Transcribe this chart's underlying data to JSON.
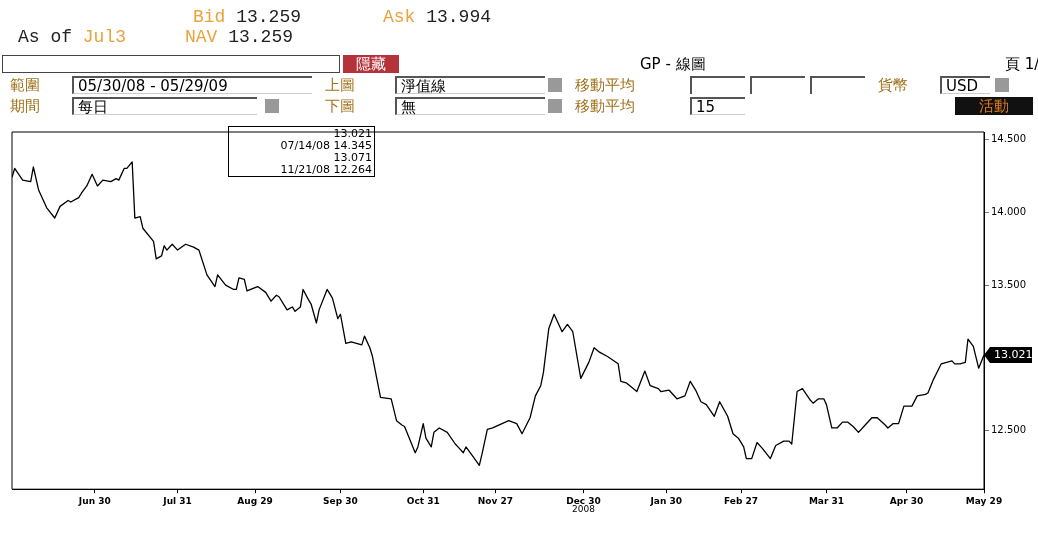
{
  "chart_data": {
    "type": "line",
    "color": "#000000",
    "marker": "none",
    "legend": false,
    "grid": false,
    "xlim": [
      "2008-05-30",
      "2009-05-29"
    ],
    "ylim": [
      12.1,
      14.55
    ],
    "xticks": [
      {
        "value": "2008-06-30",
        "label": "Jun 30"
      },
      {
        "value": "2008-07-31",
        "label": "Jul 31"
      },
      {
        "value": "2008-08-29",
        "label": "Aug 29"
      },
      {
        "value": "2008-09-30",
        "label": "Sep 30"
      },
      {
        "value": "2008-10-31",
        "label": "Oct 31"
      },
      {
        "value": "2008-11-27",
        "label": "Nov 27"
      },
      {
        "value": "2008-12-30",
        "label": "Dec 30"
      },
      {
        "value": "2009-01-30",
        "label": "Jan 30"
      },
      {
        "value": "2009-02-27",
        "label": "Feb 27"
      },
      {
        "value": "2009-03-31",
        "label": "Mar 31"
      },
      {
        "value": "2009-04-30",
        "label": "Apr 30"
      },
      {
        "value": "2009-05-29",
        "label": "May 29"
      }
    ],
    "yticks": [
      {
        "value": 12.5,
        "label": "12.500"
      },
      {
        "value": 13.5,
        "label": "13.500"
      },
      {
        "value": 14,
        "label": "14.000"
      },
      {
        "value": 14.5,
        "label": "14.500"
      }
    ],
    "x": [
      "2008-05-30",
      "2008-05-31",
      "2008-06-03",
      "2008-06-06",
      "2008-06-07",
      "2008-06-09",
      "2008-06-12",
      "2008-06-15",
      "2008-06-17",
      "2008-06-20",
      "2008-06-21",
      "2008-06-24",
      "2008-06-25",
      "2008-06-27",
      "2008-06-29",
      "2008-07-01",
      "2008-07-03",
      "2008-07-06",
      "2008-07-08",
      "2008-07-09",
      "2008-07-11",
      "2008-07-12",
      "2008-07-14",
      "2008-07-15",
      "2008-07-17",
      "2008-07-18",
      "2008-07-22",
      "2008-07-23",
      "2008-07-25",
      "2008-07-26",
      "2008-07-27",
      "2008-07-29",
      "2008-07-31",
      "2008-08-03",
      "2008-08-06",
      "2008-08-08",
      "2008-08-11",
      "2008-08-14",
      "2008-08-15",
      "2008-08-18",
      "2008-08-21",
      "2008-08-22",
      "2008-08-23",
      "2008-08-25",
      "2008-08-26",
      "2008-08-30",
      "2008-09-02",
      "2008-09-04",
      "2008-09-06",
      "2008-09-07",
      "2008-09-10",
      "2008-09-12",
      "2008-09-13",
      "2008-09-15",
      "2008-09-16",
      "2008-09-18",
      "2008-09-19",
      "2008-09-21",
      "2008-09-22",
      "2008-09-25",
      "2008-09-27",
      "2008-09-29",
      "2008-09-30",
      "2008-10-02",
      "2008-10-04",
      "2008-10-08",
      "2008-10-09",
      "2008-10-11",
      "2008-10-12",
      "2008-10-15",
      "2008-10-19",
      "2008-10-21",
      "2008-10-23",
      "2008-10-24",
      "2008-10-28",
      "2008-10-29",
      "2008-10-31",
      "2008-11-01",
      "2008-11-03",
      "2008-11-04",
      "2008-11-06",
      "2008-11-09",
      "2008-11-12",
      "2008-11-13",
      "2008-11-15",
      "2008-11-16",
      "2008-11-18",
      "2008-11-21",
      "2008-11-22",
      "2008-11-24",
      "2008-11-26",
      "2008-12-02",
      "2008-12-05",
      "2008-12-07",
      "2008-12-10",
      "2008-12-12",
      "2008-12-14",
      "2008-12-15",
      "2008-12-17",
      "2008-12-19",
      "2008-12-22",
      "2008-12-24",
      "2008-12-26",
      "2008-12-29",
      "2009-01-01",
      "2009-01-03",
      "2009-01-05",
      "2009-01-08",
      "2009-01-12",
      "2009-01-13",
      "2009-01-15",
      "2009-01-19",
      "2009-01-22",
      "2009-01-24",
      "2009-01-27",
      "2009-01-28",
      "2009-01-31",
      "2009-02-03",
      "2009-02-06",
      "2009-02-08",
      "2009-02-10",
      "2009-02-12",
      "2009-02-14",
      "2009-02-17",
      "2009-02-19",
      "2009-02-22",
      "2009-02-24",
      "2009-02-26",
      "2009-02-28",
      "2009-03-01",
      "2009-03-03",
      "2009-03-05",
      "2009-03-07",
      "2009-03-10",
      "2009-03-12",
      "2009-03-15",
      "2009-03-17",
      "2009-03-18",
      "2009-03-20",
      "2009-03-22",
      "2009-03-25",
      "2009-03-26",
      "2009-03-28",
      "2009-03-30",
      "2009-03-31",
      "2009-04-02",
      "2009-04-04",
      "2009-04-06",
      "2009-04-08",
      "2009-04-10",
      "2009-04-12",
      "2009-04-14",
      "2009-04-17",
      "2009-04-19",
      "2009-04-22",
      "2009-04-23",
      "2009-04-25",
      "2009-04-27",
      "2009-04-29",
      "2009-05-02",
      "2009-05-04",
      "2009-05-07",
      "2009-05-08",
      "2009-05-10",
      "2009-05-13",
      "2009-05-17",
      "2009-05-18",
      "2009-05-20",
      "2009-05-22",
      "2009-05-23",
      "2009-05-25",
      "2009-05-27",
      "2009-05-29"
    ],
    "values": [
      14.24,
      14.3,
      14.22,
      14.21,
      14.31,
      14.15,
      14.03,
      13.96,
      14.04,
      14.08,
      14.07,
      14.1,
      14.13,
      14.18,
      14.26,
      14.18,
      14.22,
      14.21,
      14.23,
      14.22,
      14.3,
      14.3,
      14.345,
      13.96,
      13.97,
      13.89,
      13.8,
      13.68,
      13.7,
      13.77,
      13.74,
      13.78,
      13.74,
      13.78,
      13.76,
      13.74,
      13.57,
      13.49,
      13.57,
      13.5,
      13.47,
      13.47,
      13.55,
      13.54,
      13.46,
      13.49,
      13.45,
      13.39,
      13.43,
      13.42,
      13.33,
      13.35,
      13.32,
      13.35,
      13.47,
      13.4,
      13.37,
      13.24,
      13.33,
      13.47,
      13.41,
      13.27,
      13.3,
      13.1,
      13.11,
      13.09,
      13.15,
      13.07,
      13.01,
      12.73,
      12.72,
      12.57,
      12.54,
      12.53,
      12.35,
      12.39,
      12.55,
      12.45,
      12.39,
      12.49,
      12.52,
      12.49,
      12.41,
      12.39,
      12.35,
      12.39,
      12.34,
      12.264,
      12.34,
      12.51,
      12.52,
      12.57,
      12.55,
      12.48,
      12.59,
      12.74,
      12.81,
      12.9,
      13.2,
      13.3,
      13.18,
      13.23,
      13.18,
      12.86,
      12.97,
      13.07,
      13.04,
      13.01,
      12.96,
      12.84,
      12.83,
      12.77,
      12.91,
      12.81,
      12.79,
      12.77,
      12.78,
      12.72,
      12.74,
      12.84,
      12.78,
      12.7,
      12.68,
      12.6,
      12.7,
      12.6,
      12.48,
      12.45,
      12.39,
      12.31,
      12.31,
      12.42,
      12.38,
      12.31,
      12.4,
      12.43,
      12.43,
      12.41,
      12.77,
      12.79,
      12.71,
      12.69,
      12.72,
      12.72,
      12.68,
      12.52,
      12.52,
      12.56,
      12.56,
      12.53,
      12.49,
      12.53,
      12.59,
      12.59,
      12.54,
      12.52,
      12.55,
      12.55,
      12.67,
      12.67,
      12.74,
      12.75,
      12.76,
      12.85,
      12.96,
      12.98,
      12.96,
      12.96,
      12.97,
      13.13,
      13.08,
      12.93,
      13.021
    ],
    "annotations": [
      "Bid 13.259",
      "Ask 13.994",
      "As of Jul3",
      "NAV 13.259",
      "隱藏",
      "GP - 線圖",
      "頁 1/",
      "範圍",
      "05/30/08 - 05/29/09",
      "上圖",
      "淨值線",
      "移動平均",
      "貨幣",
      "USD",
      "期間",
      "每日",
      "下圖",
      "無",
      "移動平均",
      "15",
      "活動",
      "13.021",
      "07/14/08  14.345",
      "13.071",
      "11/21/08  12.264",
      "2008",
      {
        "text": "13.021",
        "x": "2009-05-29",
        "y": 13.021
      }
    ]
  }
}
